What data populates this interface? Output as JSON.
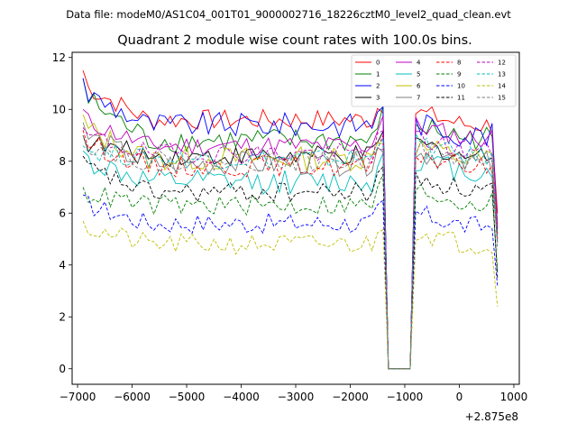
{
  "chart_data": {
    "type": "line",
    "suptitle": "Data file: modeM0/AS1C04_001T01_9000002716_18226cztM0_level2_quad_clean.evt",
    "title": "Quadrant 2 module wise count rates with 100.0s bins.",
    "xlabel": "",
    "ylabel": "",
    "x_offset_label": "+2.875e8",
    "xlim": [
      -7100,
      1100
    ],
    "ylim": [
      -0.6,
      12.2
    ],
    "xticks": [
      -7000,
      -6000,
      -5000,
      -4000,
      -3000,
      -2000,
      -1000,
      0,
      1000
    ],
    "xtick_labels": [
      "−7000",
      "−6000",
      "−5000",
      "−4000",
      "−3000",
      "−2000",
      "−1000",
      "0",
      "1000"
    ],
    "yticks": [
      0,
      2,
      4,
      6,
      8,
      10,
      12
    ],
    "ytick_labels": [
      "0",
      "2",
      "4",
      "6",
      "8",
      "10",
      "12"
    ],
    "gap_start": -1400,
    "gap_end": -800,
    "series": [
      {
        "name": "0",
        "color": "#ff0000",
        "dash": "solid",
        "base": 9.6,
        "start": 11.5,
        "end": 6.0,
        "noise": 0.25,
        "post": 9.4
      },
      {
        "name": "1",
        "color": "#008000",
        "dash": "solid",
        "base": 8.8,
        "start": 11.2,
        "end": 5.6,
        "noise": 0.3,
        "post": 8.9
      },
      {
        "name": "2",
        "color": "#0000ff",
        "dash": "solid",
        "base": 9.4,
        "start": 11.2,
        "end": 5.4,
        "noise": 0.3,
        "post": 9.0
      },
      {
        "name": "3",
        "color": "#000000",
        "dash": "solid",
        "base": 8.2,
        "start": 9.0,
        "end": 5.2,
        "noise": 0.25,
        "post": 8.2
      },
      {
        "name": "4",
        "color": "#bf00bf",
        "dash": "solid",
        "base": 8.6,
        "start": 10.0,
        "end": 5.5,
        "noise": 0.25,
        "post": 8.9
      },
      {
        "name": "5",
        "color": "#00bfbf",
        "dash": "solid",
        "base": 7.2,
        "start": 8.4,
        "end": 4.9,
        "noise": 0.3,
        "post": 7.6
      },
      {
        "name": "6",
        "color": "#bfbf00",
        "dash": "solid",
        "base": 8.1,
        "start": 9.8,
        "end": 5.0,
        "noise": 0.3,
        "post": 8.1
      },
      {
        "name": "7",
        "color": "#7f7f7f",
        "dash": "solid",
        "base": 7.9,
        "start": 9.5,
        "end": 4.9,
        "noise": 0.3,
        "post": 7.9
      },
      {
        "name": "8",
        "color": "#ff0000",
        "dash": "dashed",
        "base": 7.8,
        "start": 9.2,
        "end": 4.8,
        "noise": 0.25,
        "post": 7.8
      },
      {
        "name": "9",
        "color": "#008000",
        "dash": "dashed",
        "base": 6.3,
        "start": 7.0,
        "end": 3.8,
        "noise": 0.25,
        "post": 6.4
      },
      {
        "name": "10",
        "color": "#0000ff",
        "dash": "dashed",
        "base": 5.6,
        "start": 6.7,
        "end": 3.2,
        "noise": 0.25,
        "post": 5.5
      },
      {
        "name": "11",
        "color": "#000000",
        "dash": "dashed",
        "base": 6.8,
        "start": 8.2,
        "end": 3.5,
        "noise": 0.25,
        "post": 6.9
      },
      {
        "name": "12",
        "color": "#bf00bf",
        "dash": "dashed",
        "base": 8.3,
        "start": 9.3,
        "end": 5.0,
        "noise": 0.25,
        "post": 8.4
      },
      {
        "name": "13",
        "color": "#00bfbf",
        "dash": "dashed",
        "base": 8.1,
        "start": 8.6,
        "end": 4.8,
        "noise": 0.25,
        "post": 8.2
      },
      {
        "name": "14",
        "color": "#bfbf00",
        "dash": "dashed",
        "base": 4.8,
        "start": 5.7,
        "end": 2.4,
        "noise": 0.25,
        "post": 4.8
      },
      {
        "name": "15",
        "color": "#7f7f7f",
        "dash": "dashed",
        "base": 8.0,
        "start": 9.0,
        "end": 4.6,
        "noise": 0.25,
        "post": 8.0
      }
    ],
    "x_start": -6900,
    "x_end": 700,
    "x_step": 100,
    "legend_position": "top-right"
  }
}
